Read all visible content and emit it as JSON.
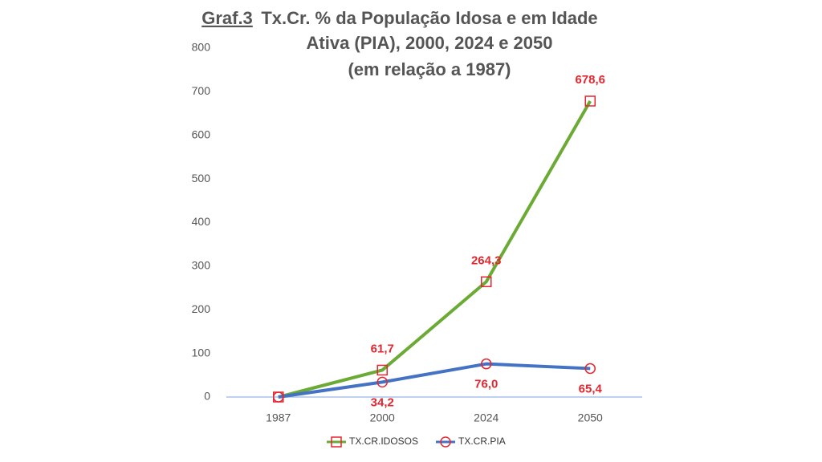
{
  "chart_data": {
    "type": "line",
    "title_prefix": "Graf.3",
    "title": [
      "Tx.Cr. % da População Idosa e em Idade",
      "Ativa (PIA), 2000, 2024 e 2050",
      "(em relação a 1987)"
    ],
    "categories": [
      "1987",
      "2000",
      "2024",
      "2050"
    ],
    "series": [
      {
        "name": "TX.CR.IDOSOS",
        "color": "#6aaa35",
        "marker": "square",
        "label_side": "above",
        "values": [
          0,
          61.7,
          264.3,
          678.6
        ],
        "value_labels": [
          null,
          "61,7",
          "264,3",
          "678,6"
        ]
      },
      {
        "name": "TX.CR.PIA",
        "color": "#4472c4",
        "marker": "circle",
        "label_side": "below",
        "values": [
          0,
          34.2,
          76.0,
          65.4
        ],
        "value_labels": [
          null,
          "34,2",
          "76,0",
          "65,4"
        ]
      }
    ],
    "marker_color": "#e3262f",
    "ylim": [
      0,
      800
    ],
    "yticks": [
      0,
      100,
      200,
      300,
      400,
      500,
      600,
      700,
      800
    ],
    "grid": false,
    "legend": "bottom"
  }
}
